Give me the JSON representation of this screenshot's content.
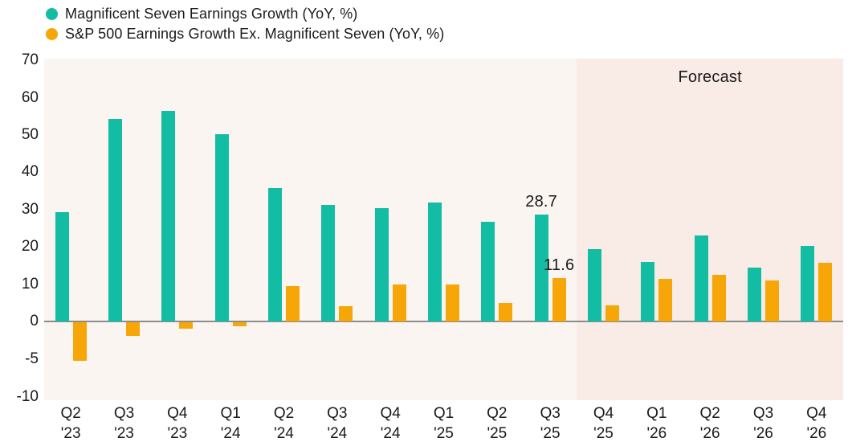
{
  "chart_data": {
    "type": "bar",
    "title": "",
    "xlabel": "",
    "ylabel": "",
    "categories": [
      [
        "Q2",
        "'23"
      ],
      [
        "Q3",
        "'23"
      ],
      [
        "Q4",
        "'23"
      ],
      [
        "Q1",
        "'24"
      ],
      [
        "Q2",
        "'24"
      ],
      [
        "Q3",
        "'24"
      ],
      [
        "Q4",
        "'24"
      ],
      [
        "Q1",
        "'25"
      ],
      [
        "Q2",
        "'25"
      ],
      [
        "Q3",
        "'25"
      ],
      [
        "Q4",
        "'25"
      ],
      [
        "Q1",
        "'26"
      ],
      [
        "Q2",
        "'26"
      ],
      [
        "Q3",
        "'26"
      ],
      [
        "Q4",
        "'26"
      ]
    ],
    "series": [
      {
        "name": "Magnificent Seven Earnings Growth (YoY, %)",
        "color": "#12bda4",
        "values": [
          29.4,
          54.3,
          56.4,
          50.2,
          35.8,
          31.2,
          30.3,
          31.8,
          26.7,
          28.7,
          19.5,
          15.9,
          23.1,
          14.4,
          20.3
        ]
      },
      {
        "name": "S&P 500 Earnings Growth Ex. Magnificent Seven (YoY, %)",
        "color": "#f7a608",
        "values": [
          -5.1,
          -1.8,
          -0.9,
          -0.5,
          9.4,
          4.2,
          9.9,
          10.0,
          5.0,
          11.6,
          4.4,
          11.4,
          12.5,
          11.0,
          15.7
        ]
      }
    ],
    "y_ticks": [
      70,
      60,
      50,
      40,
      30,
      20,
      10,
      0,
      -5,
      -10
    ],
    "ylim": [
      -10,
      70
    ],
    "grid": false,
    "legend_position": "top-left",
    "axis_note": "negative region drawn at double scale (ticks at -5 and -10)",
    "annotations": [
      {
        "series_index": 0,
        "category_index": 9,
        "text": "28.7"
      },
      {
        "series_index": 1,
        "category_index": 9,
        "text": "11.6"
      }
    ],
    "forecast": {
      "label": "Forecast",
      "start_category_index": 10
    }
  },
  "colors": {
    "teal": "#12bda4",
    "orange": "#f7a608",
    "plot_bg": "#fbf5f2",
    "forecast_bg": "#f9ece7",
    "page_bg": "#ffffff",
    "zero_line": "#8c8c8c",
    "text": "#1a1a1a"
  }
}
